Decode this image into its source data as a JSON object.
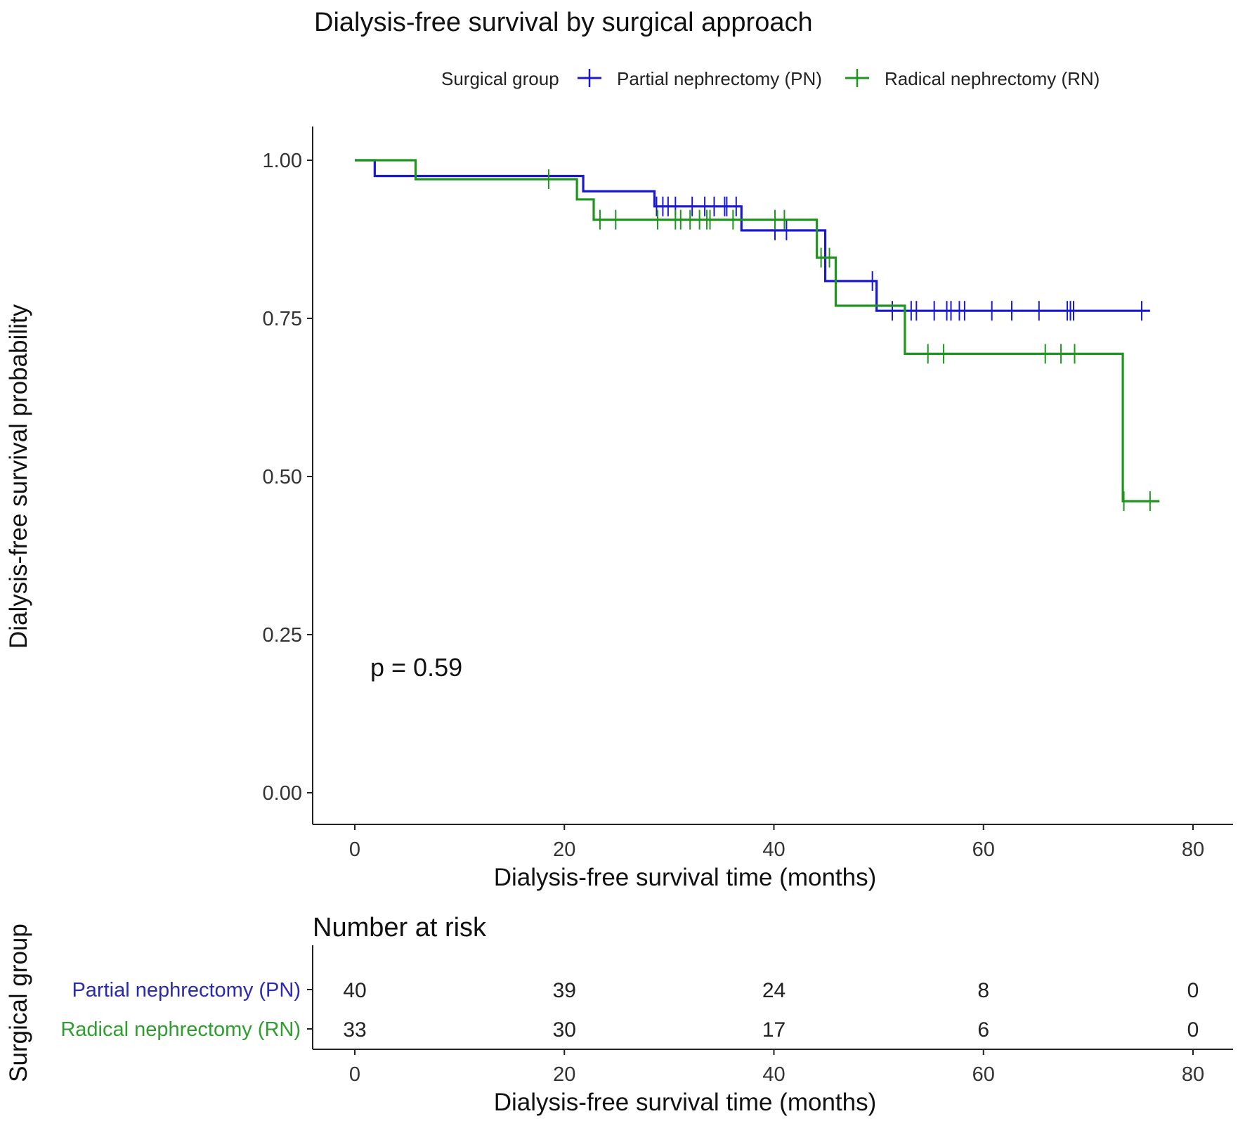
{
  "chart_data": {
    "type": "line",
    "subtype": "kaplan-meier",
    "title": "Dialysis-free survival by surgical approach",
    "xlabel": "Dialysis-free survival time (months)",
    "ylabel": "Dialysis-free survival probability",
    "xlim": [
      0,
      80
    ],
    "ylim": [
      0,
      1
    ],
    "xticks": [
      0,
      20,
      40,
      60,
      80
    ],
    "xtick_labels": [
      "0",
      "20",
      "40",
      "60",
      "80"
    ],
    "yticks": [
      0,
      0.25,
      0.5,
      0.75,
      1.0
    ],
    "ytick_labels": [
      "0.00",
      "0.25",
      "0.50",
      "0.75",
      "1.00"
    ],
    "grid": false,
    "legend": {
      "title": "Surgical group",
      "placement": "top",
      "entries": [
        "Partial nephrectomy (PN)",
        "Radical nephrectomy (RN)"
      ]
    },
    "annotation": "p = 0.59",
    "series": [
      {
        "name": "Partial nephrectomy (PN)",
        "color": "#1a1acc",
        "steps": [
          {
            "t": 0,
            "s": 1.0
          },
          {
            "t": 1.9,
            "s": 0.975
          },
          {
            "t": 21.8,
            "s": 0.951
          },
          {
            "t": 28.6,
            "s": 0.927
          },
          {
            "t": 36.9,
            "s": 0.889
          },
          {
            "t": 44.9,
            "s": 0.809
          },
          {
            "t": 49.8,
            "s": 0.762
          }
        ],
        "end_t": 75.9,
        "censored": [
          28.8,
          29.4,
          29.9,
          30.6,
          32.2,
          33.4,
          34.3,
          35.3,
          35.5,
          36.4,
          40.1,
          41.2,
          49.4,
          51.3,
          53.1,
          53.6,
          55.3,
          56.5,
          56.9,
          57.7,
          58.2,
          60.8,
          62.7,
          65.3,
          68.0,
          68.3,
          68.6,
          75.1
        ]
      },
      {
        "name": "Radical nephrectomy (RN)",
        "color": "#1e961e",
        "steps": [
          {
            "t": 0,
            "s": 1.0
          },
          {
            "t": 5.8,
            "s": 0.97
          },
          {
            "t": 21.2,
            "s": 0.938
          },
          {
            "t": 22.8,
            "s": 0.906
          },
          {
            "t": 44.1,
            "s": 0.846
          },
          {
            "t": 45.9,
            "s": 0.77
          },
          {
            "t": 52.5,
            "s": 0.694
          },
          {
            "t": 73.3,
            "s": 0.461
          }
        ],
        "end_t": 76.8,
        "censored": [
          18.5,
          23.4,
          24.9,
          28.9,
          30.6,
          31.1,
          32.0,
          32.9,
          33.6,
          33.9,
          36.1,
          40.1,
          41.0,
          44.5,
          45.3,
          54.7,
          56.2,
          65.9,
          67.4,
          68.7,
          73.4,
          75.9
        ]
      }
    ],
    "risk_table": {
      "title": "Number at risk",
      "ylabel": "Surgical group",
      "xlabel": "Dialysis-free survival time (months)",
      "times": [
        0,
        20,
        40,
        60,
        80
      ],
      "time_labels": [
        "0",
        "20",
        "40",
        "60",
        "80"
      ],
      "rows": [
        {
          "group": "Partial nephrectomy (PN)",
          "color": "#2a2ab0",
          "counts": [
            "40",
            "39",
            "24",
            "8",
            "0"
          ]
        },
        {
          "group": "Radical nephrectomy (RN)",
          "color": "#2e9e2e",
          "counts": [
            "33",
            "30",
            "17",
            "6",
            "0"
          ]
        }
      ]
    }
  }
}
